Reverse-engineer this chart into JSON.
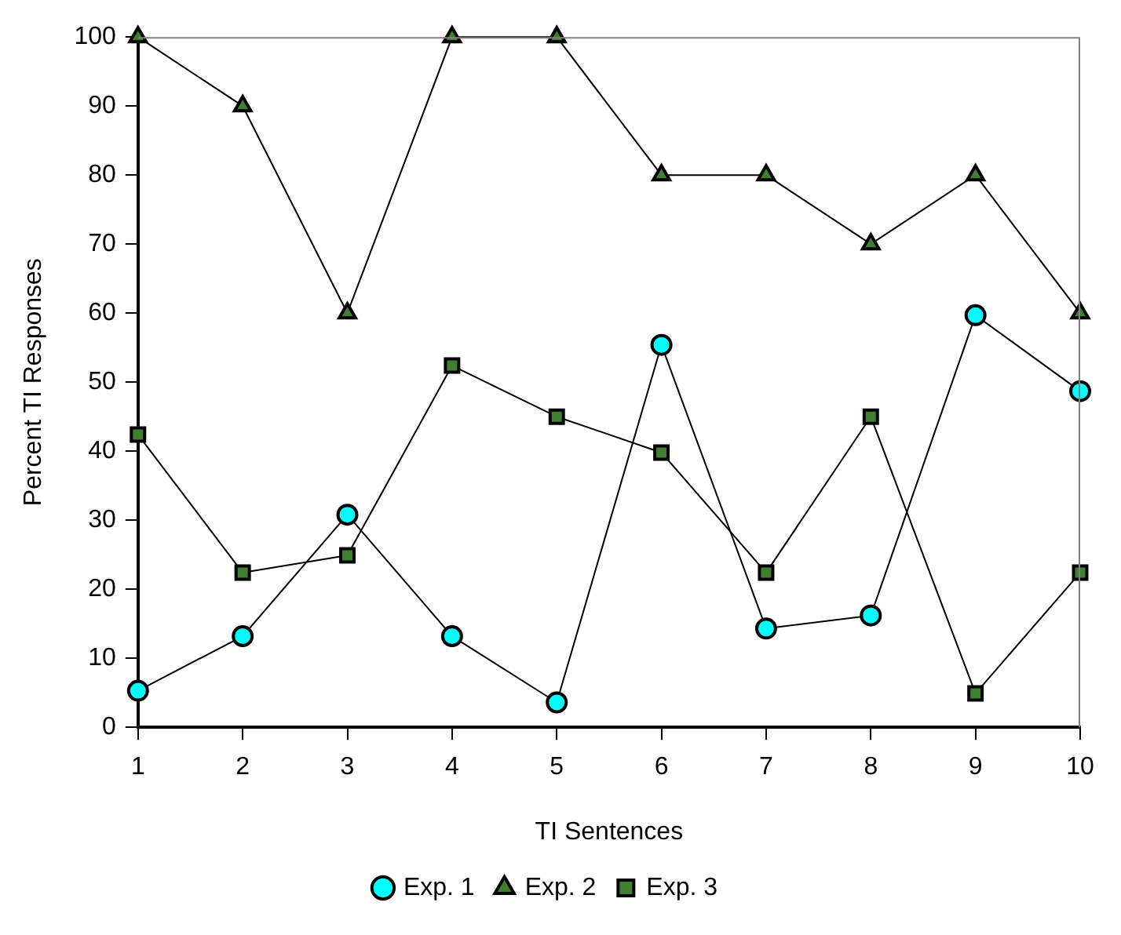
{
  "chart_data": {
    "type": "line",
    "xlabel": "TI Sentences",
    "ylabel": "Percent TI Responses",
    "categories": [
      "1",
      "2",
      "3",
      "4",
      "5",
      "6",
      "7",
      "8",
      "9",
      "10"
    ],
    "series": [
      {
        "name": "Exp. 1",
        "color": "#00ffff",
        "marker": "circle",
        "values": [
          5.3,
          13.2,
          30.8,
          13.2,
          3.6,
          55.4,
          14.3,
          16.2,
          59.7,
          48.7
        ]
      },
      {
        "name": "Exp. 2",
        "color": "#3f7f2f",
        "marker": "triangle",
        "values": [
          100,
          90,
          60,
          100,
          100,
          80,
          80,
          70,
          80,
          60
        ]
      },
      {
        "name": "Exp. 3",
        "color": "#3f7f2f",
        "marker": "square",
        "values": [
          42.4,
          22.4,
          24.9,
          52.4,
          45.0,
          39.8,
          22.4,
          45.0,
          4.9,
          22.4
        ]
      }
    ],
    "ylim": [
      0,
      100
    ],
    "yticks": [
      0,
      10,
      20,
      30,
      40,
      50,
      60,
      70,
      80,
      90,
      100
    ],
    "grid": false,
    "legend": "bottom",
    "line_style": "solid"
  }
}
